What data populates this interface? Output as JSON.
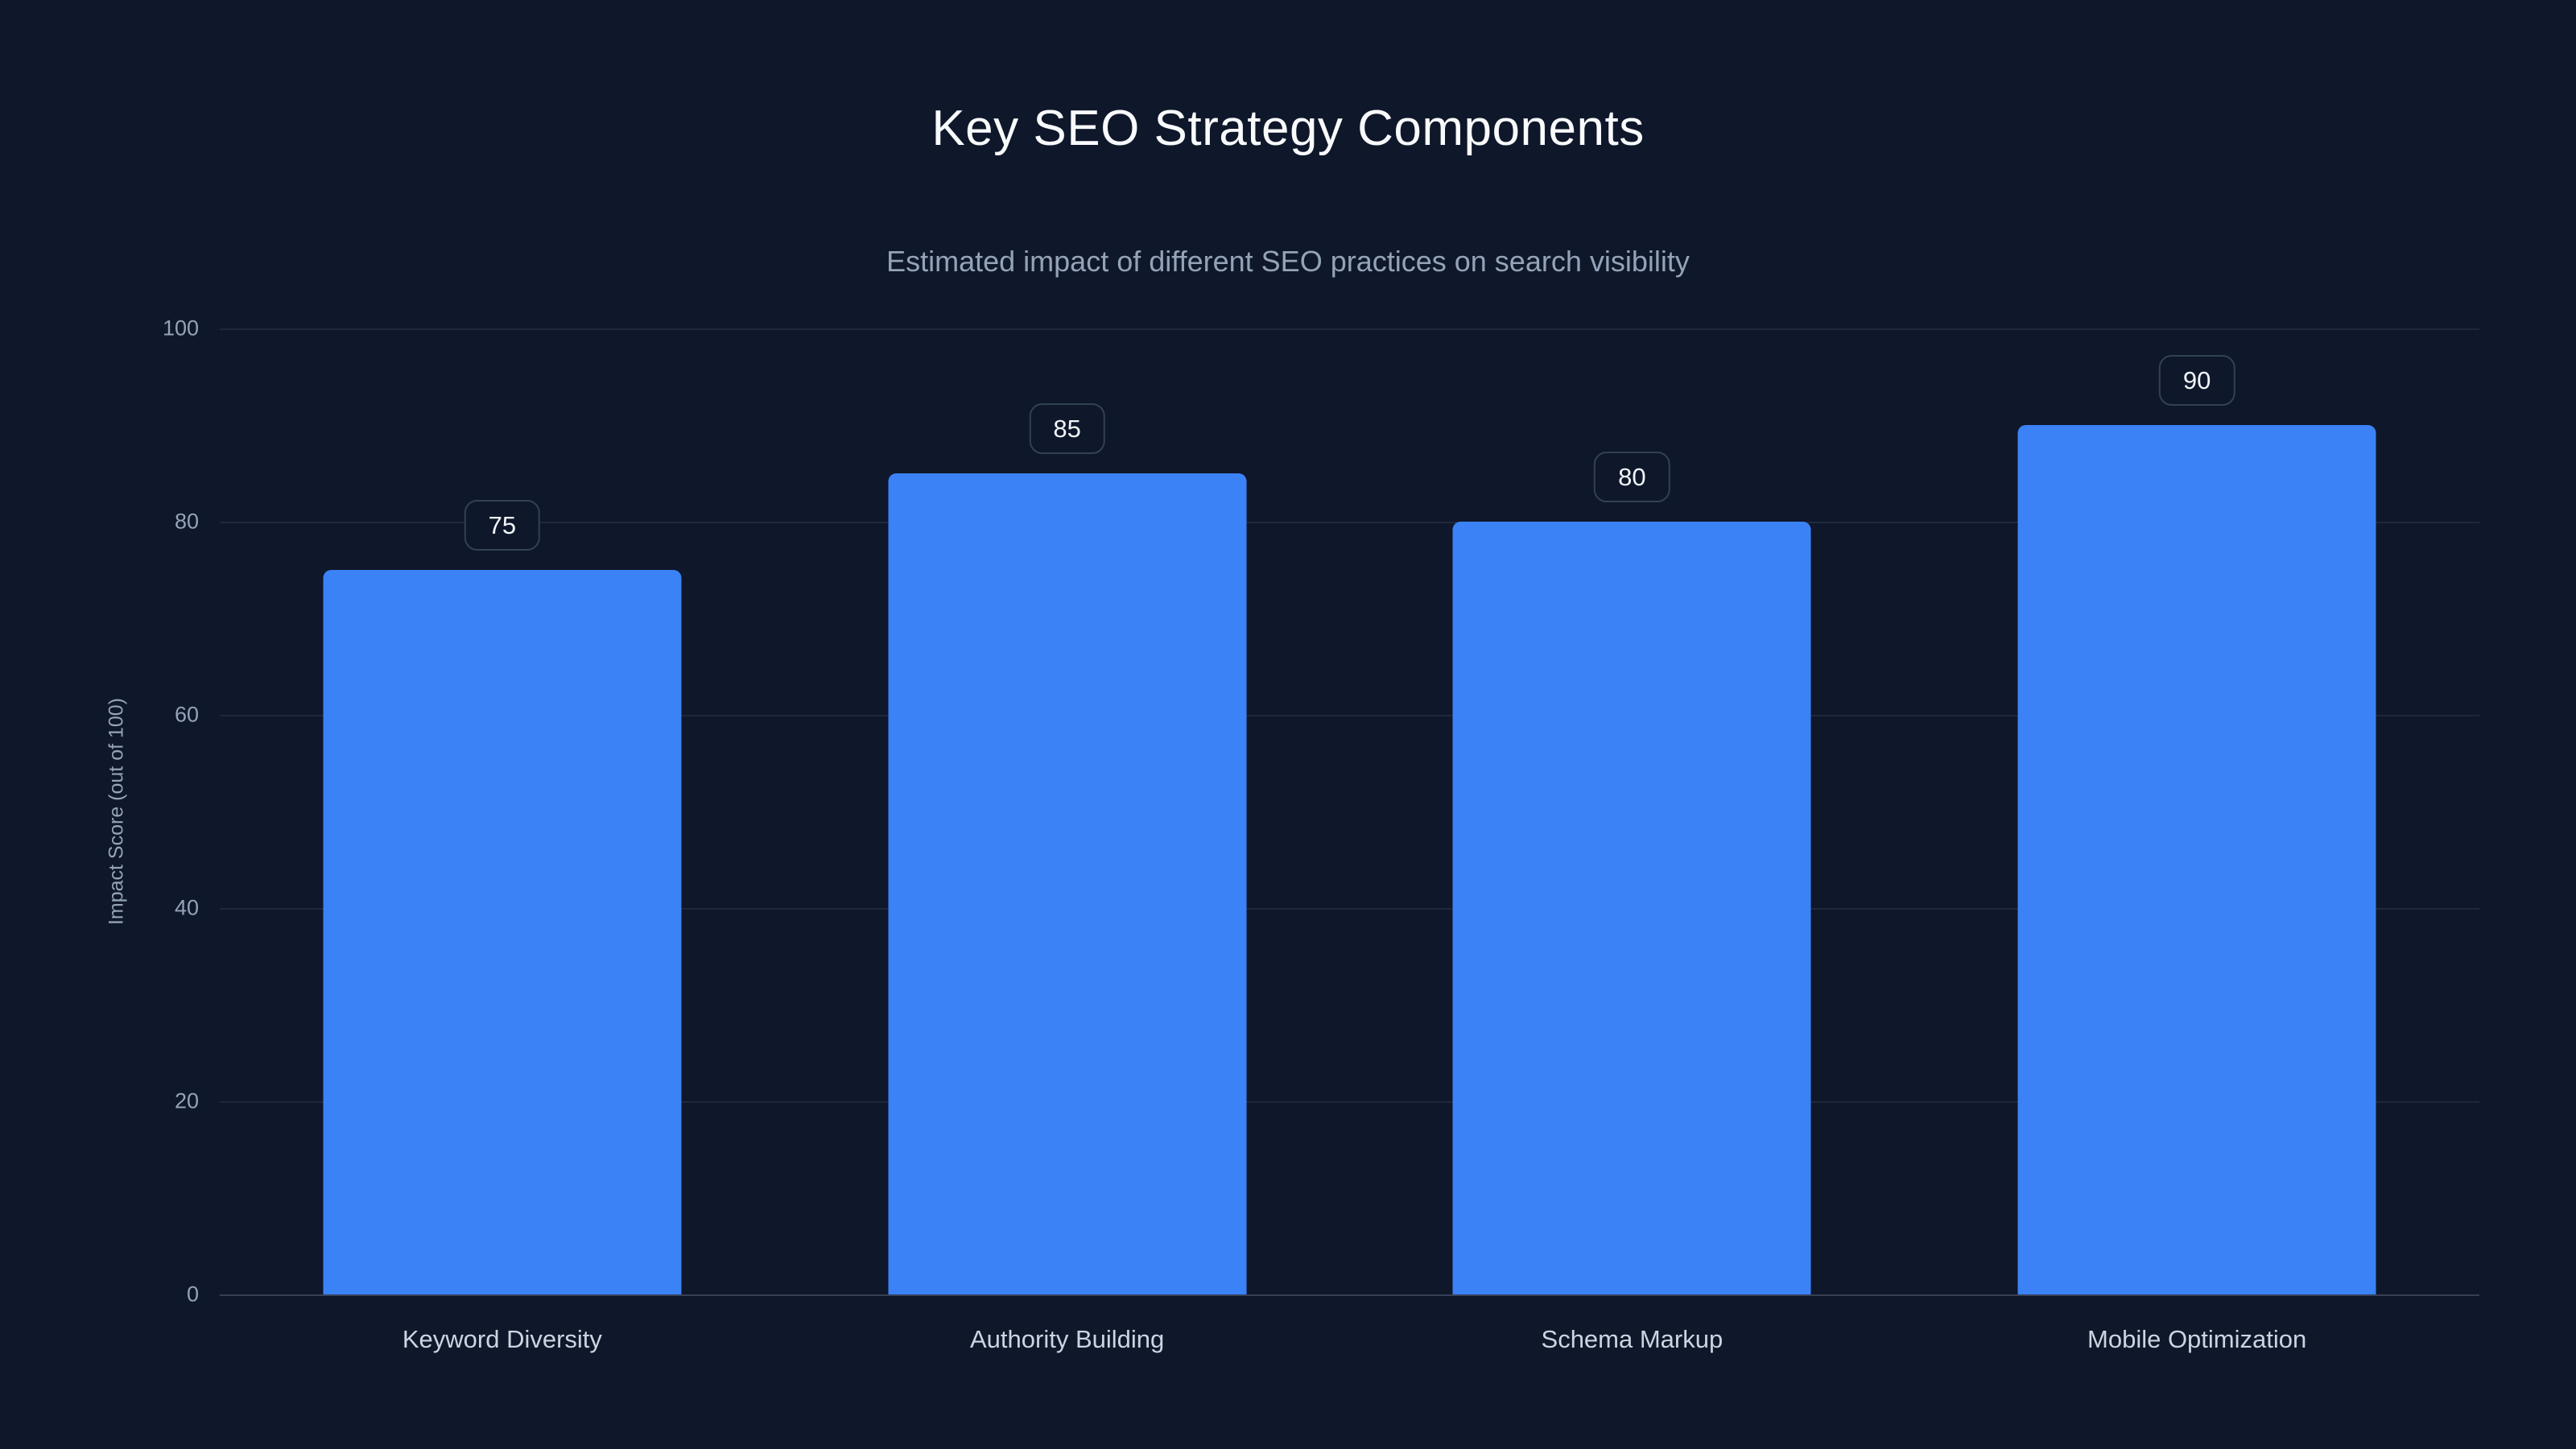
{
  "chart_data": {
    "type": "bar",
    "title": "Key SEO Strategy Components",
    "subtitle": "Estimated impact of different SEO practices on search visibility",
    "categories": [
      "Keyword Diversity",
      "Authority Building",
      "Schema Markup",
      "Mobile Optimization"
    ],
    "values": [
      75,
      85,
      80,
      90
    ],
    "value_labels": [
      "75",
      "85",
      "80",
      "90"
    ],
    "xlabel": "",
    "ylabel": "Impact Score (out of 100)",
    "ylim": [
      0,
      100
    ],
    "yticks": [
      0,
      20,
      40,
      60,
      80,
      100
    ],
    "grid": true,
    "legend_position": "none",
    "bar_color": "#3b82f6",
    "background_color": "#0f172a",
    "gridline_color": "rgba(148,163,184,0.12)",
    "text_color": "#94a3b8"
  }
}
